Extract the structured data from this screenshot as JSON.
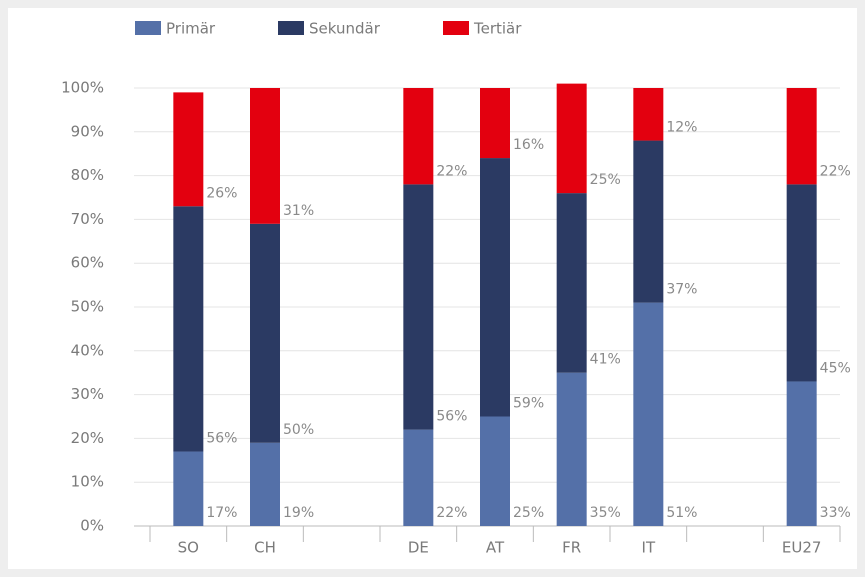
{
  "chart_data": {
    "type": "stacked_bar",
    "categories": [
      "SO",
      "CH",
      null,
      "DE",
      "AT",
      "FR",
      "IT",
      null,
      "EU27"
    ],
    "series": [
      {
        "name": "Primär",
        "color": "#5470a8",
        "values": [
          17,
          19,
          null,
          22,
          25,
          35,
          51,
          null,
          33
        ],
        "value_labels": [
          "17%",
          "19%",
          null,
          "22%",
          "25%",
          "35%",
          "51%",
          null,
          "33%"
        ]
      },
      {
        "name": "Sekundär",
        "color": "#2b3a63",
        "values": [
          56,
          50,
          null,
          56,
          59,
          41,
          37,
          null,
          45
        ],
        "value_labels": [
          "56%",
          "50%",
          null,
          "56%",
          "59%",
          "41%",
          "37%",
          null,
          "45%"
        ]
      },
      {
        "name": "Tertiär",
        "color": "#e3000f",
        "values": [
          26,
          31,
          null,
          22,
          16,
          25,
          12,
          null,
          22
        ],
        "value_labels": [
          "26%",
          "31%",
          null,
          "22%",
          "16%",
          "25%",
          "12%",
          null,
          "22%"
        ]
      }
    ],
    "ylim": [
      0,
      100
    ],
    "yticks": [
      {
        "value": 0,
        "label": "0%"
      },
      {
        "value": 10,
        "label": "10%"
      },
      {
        "value": 20,
        "label": "20%"
      },
      {
        "value": 30,
        "label": "30%"
      },
      {
        "value": 40,
        "label": "40%"
      },
      {
        "value": 50,
        "label": "50%"
      },
      {
        "value": 60,
        "label": "60%"
      },
      {
        "value": 70,
        "label": "70%"
      },
      {
        "value": 80,
        "label": "80%"
      },
      {
        "value": 90,
        "label": "90%"
      },
      {
        "value": 100,
        "label": "100%"
      }
    ],
    "grid": true,
    "legend": "top"
  }
}
